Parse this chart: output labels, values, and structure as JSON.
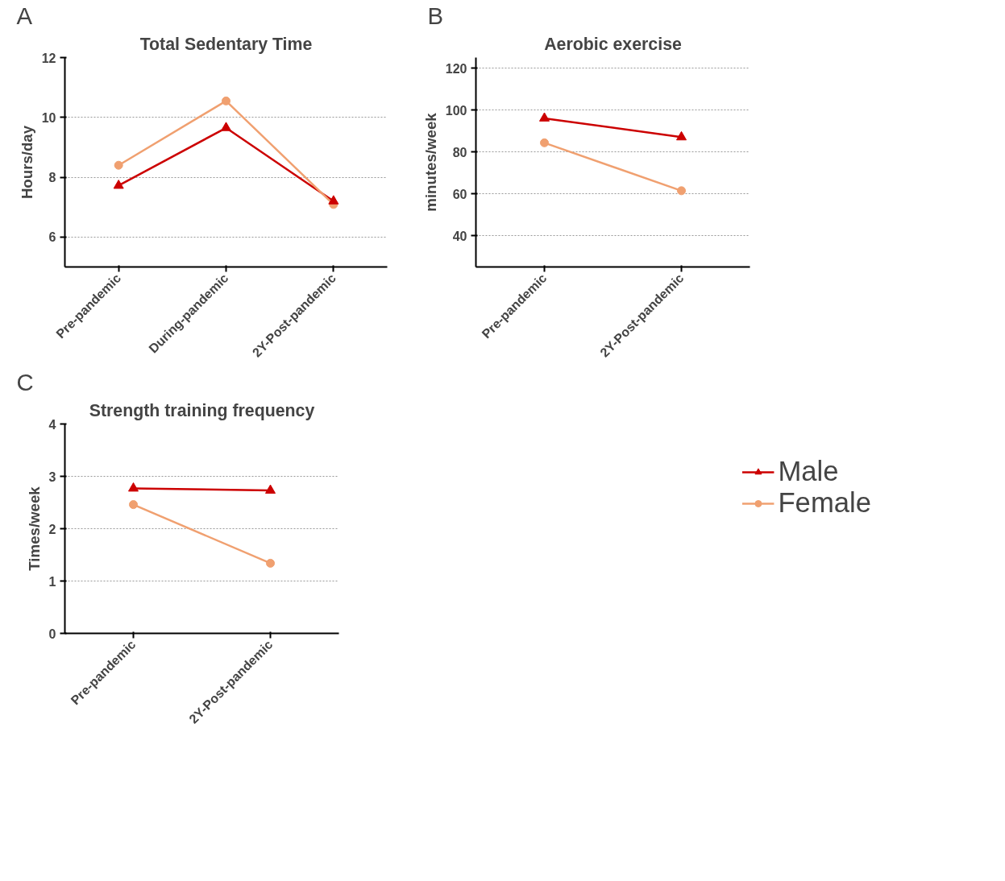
{
  "chart_data": [
    {
      "type": "line",
      "title": "Total Sedentary Time",
      "ylabel": "Hours/day",
      "annotations": [
        "A"
      ],
      "categories": [
        "Pre-pandemic",
        "During-pandemic",
        "2Y-Post-pandemic"
      ],
      "ylim": [
        5,
        12
      ],
      "yticks": [
        6,
        8,
        10,
        12
      ],
      "grid": "y",
      "series": [
        {
          "color": "#cc0000",
          "marker": "triangle",
          "values": [
            7.72,
            9.65,
            7.2
          ]
        },
        {
          "color": "#f0a070",
          "marker": "circle",
          "values": [
            8.4,
            10.55,
            7.09
          ]
        }
      ]
    },
    {
      "type": "line",
      "title": "Aerobic exercise",
      "ylabel": "minutes/week",
      "annotations": [
        "B"
      ],
      "categories": [
        "Pre-pandemic",
        "2Y-Post-pandemic"
      ],
      "ylim": [
        25,
        125
      ],
      "yticks": [
        40,
        60,
        80,
        100,
        120
      ],
      "grid": "y",
      "series": [
        {
          "color": "#cc0000",
          "marker": "triangle",
          "values": [
            96,
            87
          ]
        },
        {
          "color": "#f0a070",
          "marker": "circle",
          "values": [
            84.3,
            61.4
          ]
        }
      ]
    },
    {
      "type": "line",
      "title": "Strength training frequency",
      "ylabel": "Times/week",
      "annotations": [
        "C"
      ],
      "categories": [
        "Pre-pandemic",
        "2Y-Post-pandemic"
      ],
      "ylim": [
        0,
        4
      ],
      "yticks": [
        0,
        1,
        2,
        3,
        4
      ],
      "grid": "y",
      "legend": "right",
      "series": [
        {
          "name": "Male",
          "color": "#cc0000",
          "marker": "triangle",
          "values": [
            2.77,
            2.73
          ]
        },
        {
          "name": "Female",
          "color": "#f0a070",
          "marker": "circle",
          "values": [
            2.46,
            1.34
          ]
        }
      ]
    }
  ]
}
